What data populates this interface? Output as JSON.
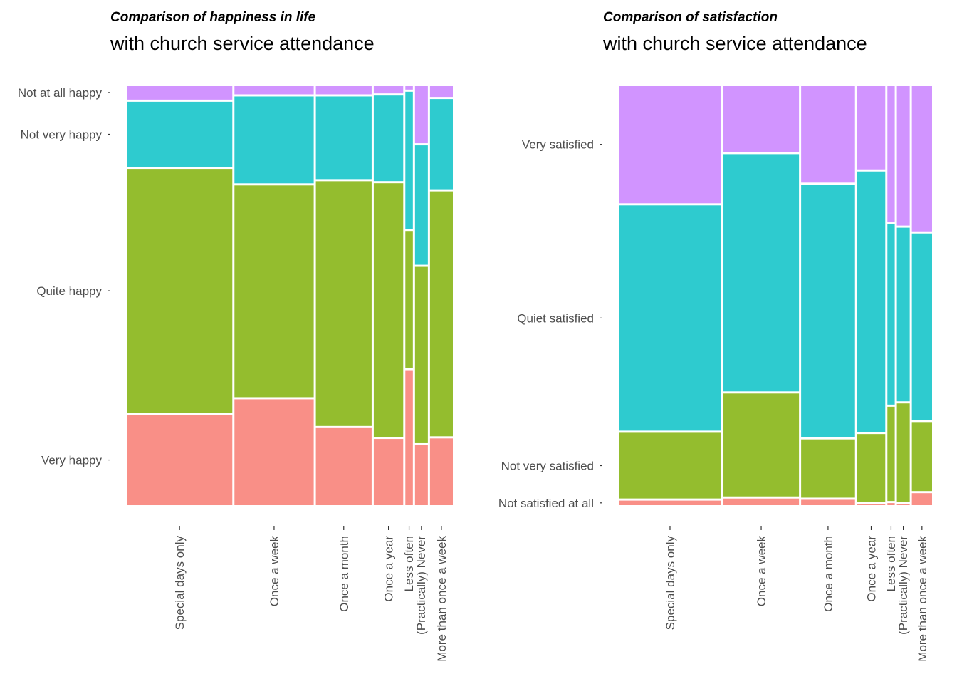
{
  "chart_data": [
    {
      "type": "mosaic",
      "title": "Comparison of happiness in life",
      "subtitle": "with church service attendance",
      "xlabel": "",
      "ylabel": "",
      "x_categories": [
        "Special days only",
        "Once a week",
        "Once a month",
        "Once a year",
        "Less often",
        "(Practically) Never",
        "More than once a week"
      ],
      "x_tick_labels": [
        "Special days only",
        "Once a week",
        "Once a month",
        "Once a year",
        "Less often\n(Practically) Never",
        "More than once a week"
      ],
      "x_widths": [
        0.337,
        0.253,
        0.178,
        0.094,
        0.024,
        0.041,
        0.073
      ],
      "y_categories": [
        "Very happy",
        "Quite happy",
        "Not very happy",
        "Not at all happy"
      ],
      "colors": [
        "#F8766D",
        "#7CAE00",
        "#00BFC4",
        "#C77CFF"
      ],
      "proportions": [
        [
          0.217,
          0.585,
          0.156,
          0.034
        ],
        [
          0.25,
          0.5,
          0.205,
          0.021
        ],
        [
          0.182,
          0.578,
          0.195,
          0.021
        ],
        [
          0.158,
          0.605,
          0.204,
          0.019
        ],
        [
          0.325,
          0.33,
          0.33,
          0.01
        ],
        [
          0.142,
          0.418,
          0.283,
          0.137
        ],
        [
          0.157,
          0.576,
          0.212,
          0.027
        ]
      ]
    },
    {
      "type": "mosaic",
      "title": "Comparison of satisfaction",
      "subtitle": "with church service attendance",
      "xlabel": "",
      "ylabel": "",
      "x_categories": [
        "Special days only",
        "Once a week",
        "Once a month",
        "Once a year",
        "Less often",
        "(Practically) Never",
        "More than once a week"
      ],
      "x_tick_labels": [
        "Special days only",
        "Once a week",
        "Once a month",
        "Once a year",
        "Less often\n(Practically) Never",
        "More than once a week"
      ],
      "x_widths": [
        0.335,
        0.247,
        0.176,
        0.092,
        0.024,
        0.042,
        0.066
      ],
      "y_categories": [
        "Not satisfied at all",
        "Not very satisfied",
        "Quiet satisfied",
        "Very satisfied"
      ],
      "colors": [
        "#F8766D",
        "#7CAE00",
        "#00BFC4",
        "#C77CFF"
      ],
      "proportions": [
        [
          0.011,
          0.159,
          0.545,
          0.285
        ],
        [
          0.016,
          0.249,
          0.574,
          0.161
        ],
        [
          0.013,
          0.141,
          0.611,
          0.235
        ],
        [
          0.003,
          0.164,
          0.63,
          0.203
        ],
        [
          0.005,
          0.228,
          0.437,
          0.33
        ],
        [
          0.003,
          0.238,
          0.42,
          0.339
        ],
        [
          0.029,
          0.167,
          0.451,
          0.353
        ]
      ]
    }
  ]
}
